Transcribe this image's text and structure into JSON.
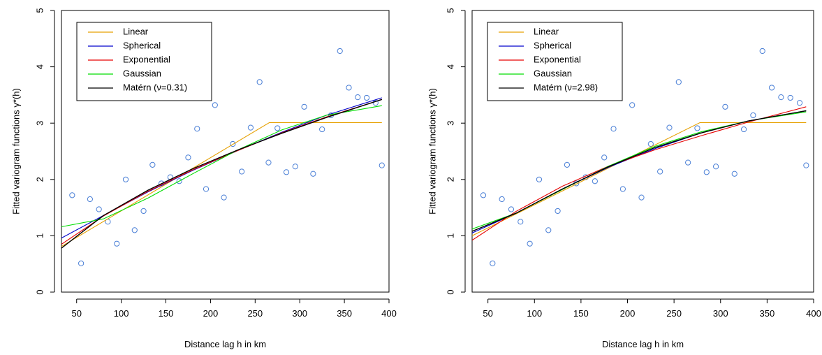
{
  "chart_data": [
    {
      "type": "line",
      "xlabel": "Distance lag h in km",
      "ylabel": "Fitted variogram functions  γ*(h)",
      "xlim": [
        33,
        400
      ],
      "ylim": [
        0,
        5
      ],
      "xticks": [
        50,
        100,
        150,
        200,
        250,
        300,
        350,
        400
      ],
      "yticks": [
        0,
        1,
        2,
        3,
        4,
        5
      ],
      "legend_position": "top-left",
      "grid": false,
      "scatter_color": "#4a7fd6",
      "points": {
        "x": [
          45,
          55,
          65,
          75,
          85,
          95,
          105,
          115,
          125,
          135,
          145,
          155,
          165,
          175,
          185,
          195,
          205,
          215,
          225,
          235,
          245,
          255,
          265,
          275,
          285,
          295,
          305,
          315,
          325,
          335,
          345,
          355,
          365,
          375,
          385,
          392
        ],
        "y": [
          1.72,
          0.51,
          1.65,
          1.47,
          1.25,
          0.86,
          2.0,
          1.1,
          1.44,
          2.26,
          1.93,
          2.04,
          1.97,
          2.39,
          2.9,
          1.83,
          3.32,
          1.68,
          2.63,
          2.14,
          2.92,
          3.73,
          2.3,
          2.91,
          2.13,
          2.23,
          3.29,
          2.1,
          2.89,
          3.14,
          4.28,
          3.63,
          3.46,
          3.45,
          3.36,
          2.25
        ]
      },
      "series": [
        {
          "name": "Linear",
          "color": "#e6a000",
          "x": [
            33,
            266,
            392
          ],
          "y": [
            0.81,
            3.01,
            3.01
          ]
        },
        {
          "name": "Spherical",
          "color": "#0000cc",
          "x": [
            33,
            80,
            130,
            180,
            230,
            280,
            330,
            392
          ],
          "y": [
            0.96,
            1.36,
            1.78,
            2.16,
            2.51,
            2.84,
            3.14,
            3.45
          ]
        },
        {
          "name": "Exponential",
          "color": "#e60000",
          "x": [
            33,
            80,
            130,
            180,
            230,
            280,
            330,
            392
          ],
          "y": [
            0.85,
            1.35,
            1.79,
            2.17,
            2.51,
            2.83,
            3.11,
            3.42
          ]
        },
        {
          "name": "Gaussian",
          "color": "#00dd00",
          "x": [
            33,
            80,
            130,
            180,
            230,
            280,
            330,
            392
          ],
          "y": [
            1.16,
            1.3,
            1.67,
            2.1,
            2.52,
            2.88,
            3.14,
            3.31
          ]
        },
        {
          "name": "Matérn (ν=0.31)",
          "color": "#000000",
          "x": [
            33,
            80,
            130,
            180,
            230,
            280,
            330,
            392
          ],
          "y": [
            0.78,
            1.36,
            1.81,
            2.19,
            2.52,
            2.82,
            3.1,
            3.42
          ]
        }
      ]
    },
    {
      "type": "line",
      "xlabel": "Distance lag h in km",
      "ylabel": "Fitted variogram functions  γ*(h)",
      "xlim": [
        33,
        400
      ],
      "ylim": [
        0,
        5
      ],
      "xticks": [
        50,
        100,
        150,
        200,
        250,
        300,
        350,
        400
      ],
      "yticks": [
        0,
        1,
        2,
        3,
        4,
        5
      ],
      "legend_position": "top-left",
      "grid": false,
      "scatter_color": "#4a7fd6",
      "points": {
        "x": [
          45,
          55,
          65,
          75,
          85,
          95,
          105,
          115,
          125,
          135,
          145,
          155,
          165,
          175,
          185,
          195,
          205,
          215,
          225,
          235,
          245,
          255,
          265,
          275,
          285,
          295,
          305,
          315,
          325,
          335,
          345,
          355,
          365,
          375,
          385,
          392
        ],
        "y": [
          1.72,
          0.51,
          1.65,
          1.47,
          1.25,
          0.86,
          2.0,
          1.1,
          1.44,
          2.26,
          1.93,
          2.04,
          1.97,
          2.39,
          2.9,
          1.83,
          3.32,
          1.68,
          2.63,
          2.14,
          2.92,
          3.73,
          2.3,
          2.91,
          2.13,
          2.23,
          3.29,
          2.1,
          2.89,
          3.14,
          4.28,
          3.63,
          3.46,
          3.45,
          3.36,
          2.25
        ]
      },
      "series": [
        {
          "name": "Linear",
          "color": "#e6a000",
          "x": [
            33,
            278,
            392
          ],
          "y": [
            1.0,
            3.01,
            3.01
          ]
        },
        {
          "name": "Spherical",
          "color": "#0000cc",
          "x": [
            33,
            80,
            130,
            180,
            230,
            280,
            330,
            392
          ],
          "y": [
            1.05,
            1.4,
            1.83,
            2.22,
            2.55,
            2.83,
            3.04,
            3.22
          ]
        },
        {
          "name": "Exponential",
          "color": "#e60000",
          "x": [
            33,
            80,
            130,
            180,
            230,
            280,
            330,
            392
          ],
          "y": [
            0.92,
            1.43,
            1.88,
            2.24,
            2.53,
            2.78,
            3.02,
            3.29
          ]
        },
        {
          "name": "Gaussian",
          "color": "#00dd00",
          "x": [
            33,
            80,
            130,
            180,
            230,
            280,
            330,
            392
          ],
          "y": [
            1.12,
            1.4,
            1.82,
            2.24,
            2.59,
            2.85,
            3.04,
            3.2
          ]
        },
        {
          "name": "Matérn (ν=2.98)",
          "color": "#000000",
          "x": [
            33,
            80,
            130,
            180,
            230,
            280,
            330,
            392
          ],
          "y": [
            1.08,
            1.4,
            1.83,
            2.23,
            2.57,
            2.83,
            3.04,
            3.22
          ]
        }
      ]
    }
  ]
}
